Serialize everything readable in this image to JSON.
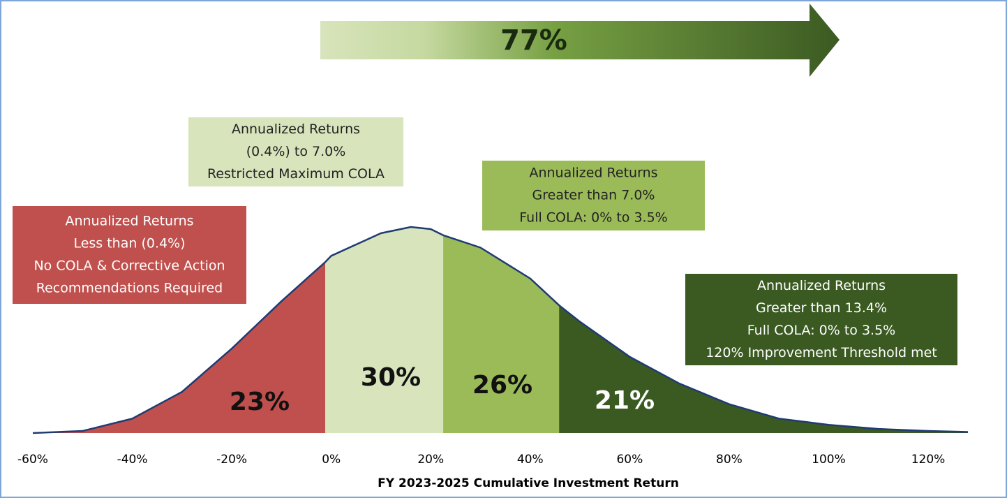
{
  "chart_data": {
    "type": "distribution",
    "headline": {
      "value": 77,
      "label": "77%"
    },
    "xlabel": "FY 2023-2025 Cumulative Investment Return",
    "xlim": [
      -60,
      128
    ],
    "ylim": [
      0,
      100
    ],
    "xticks": [
      {
        "value": -60,
        "label": "-60%"
      },
      {
        "value": -40,
        "label": "-40%"
      },
      {
        "value": -20,
        "label": "-20%"
      },
      {
        "value": 0,
        "label": "0%"
      },
      {
        "value": 20,
        "label": "20%"
      },
      {
        "value": 40,
        "label": "40%"
      },
      {
        "value": 60,
        "label": "60%"
      },
      {
        "value": 80,
        "label": "80%"
      },
      {
        "value": 100,
        "label": "100%"
      },
      {
        "value": 120,
        "label": "120%"
      }
    ],
    "curve": {
      "color": "#1f3b73",
      "x": [
        -60,
        -50,
        -40,
        -30,
        -20,
        -10,
        -1.2,
        0,
        10,
        16,
        20,
        22.5,
        30,
        40,
        45.8,
        50,
        60,
        70,
        80,
        90,
        100,
        110,
        120,
        128
      ],
      "values": [
        0,
        1,
        7,
        20,
        41,
        64,
        83,
        86,
        97,
        100,
        99,
        96,
        90,
        75,
        62,
        54,
        37,
        24,
        14,
        7,
        4,
        2,
        1,
        0.5
      ]
    },
    "boundaries": [
      -1.2,
      22.5,
      45.8
    ],
    "values": [
      23,
      30,
      26,
      21
    ],
    "value_labels": [
      "23%",
      "30%",
      "26%",
      "21%"
    ],
    "colors": [
      "#c0504d",
      "#d8e4bc",
      "#9bbb59",
      "#3b5a22"
    ],
    "annotations": [
      {
        "lines": [
          "Annualized Returns",
          "Less than (0.4%)",
          "No COLA & Corrective Action",
          "Recommendations Required"
        ]
      },
      {
        "lines": [
          "Annualized Returns",
          "(0.4%)  to 7.0%",
          "Restricted Maximum COLA"
        ]
      },
      {
        "lines": [
          "Annualized Returns",
          "Greater than 7.0%",
          "Full COLA: 0% to 3.5%"
        ]
      },
      {
        "lines": [
          "Annualized Returns",
          "Greater than 13.4%",
          "Full COLA: 0% to 3.5%",
          "120% Improvement Threshold met"
        ]
      }
    ]
  }
}
